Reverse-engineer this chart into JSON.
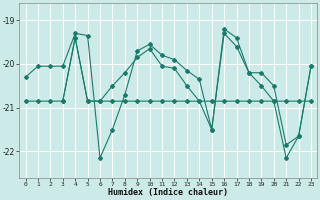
{
  "xlabel": "Humidex (Indice chaleur)",
  "bg_color": "#cceae8",
  "grid_color": "#ffffff",
  "line_color": "#1a7a6a",
  "xlim": [
    -0.5,
    23.5
  ],
  "ylim": [
    -22.6,
    -18.6
  ],
  "yticks": [
    -22,
    -21,
    -20,
    -19
  ],
  "xticks": [
    0,
    1,
    2,
    3,
    4,
    5,
    6,
    7,
    8,
    9,
    10,
    11,
    12,
    13,
    14,
    15,
    16,
    17,
    18,
    19,
    20,
    21,
    22,
    23
  ],
  "series": [
    {
      "x": [
        0,
        1,
        2,
        3,
        4,
        5,
        6,
        7,
        8,
        9,
        10,
        11,
        12,
        13,
        14,
        15,
        16,
        17,
        18,
        19,
        20,
        21,
        22,
        23
      ],
      "y": [
        -20.3,
        -20.05,
        -20.05,
        -20.05,
        -19.3,
        -19.35,
        -22.15,
        -21.5,
        -20.7,
        -19.7,
        -19.55,
        -19.8,
        -19.9,
        -20.15,
        -20.35,
        -21.5,
        -19.2,
        -19.4,
        -20.2,
        -20.2,
        -20.5,
        -21.85,
        -21.65,
        -20.05
      ]
    },
    {
      "x": [
        0,
        1,
        2,
        3,
        4,
        5,
        6,
        7,
        8,
        9,
        10,
        11,
        12,
        13,
        14,
        15,
        16,
        17,
        18,
        19,
        20,
        21,
        22,
        23
      ],
      "y": [
        -20.85,
        -20.85,
        -20.85,
        -20.85,
        -19.4,
        -20.85,
        -20.85,
        -20.85,
        -20.85,
        -20.85,
        -20.85,
        -20.85,
        -20.85,
        -20.85,
        -20.85,
        -20.85,
        -20.85,
        -20.85,
        -20.85,
        -20.85,
        -20.85,
        -20.85,
        -20.85,
        -20.85
      ]
    },
    {
      "x": [
        3,
        4,
        5,
        6,
        7,
        8,
        9,
        10,
        11,
        12,
        13,
        14,
        15,
        16,
        17,
        18,
        19,
        20,
        21,
        22,
        23
      ],
      "y": [
        -20.85,
        -19.4,
        -20.85,
        -20.85,
        -20.5,
        -20.2,
        -19.85,
        -19.65,
        -20.05,
        -20.1,
        -20.5,
        -20.85,
        -21.5,
        -19.3,
        -19.6,
        -20.2,
        -20.5,
        -20.85,
        -22.15,
        -21.65,
        -20.05
      ]
    }
  ]
}
